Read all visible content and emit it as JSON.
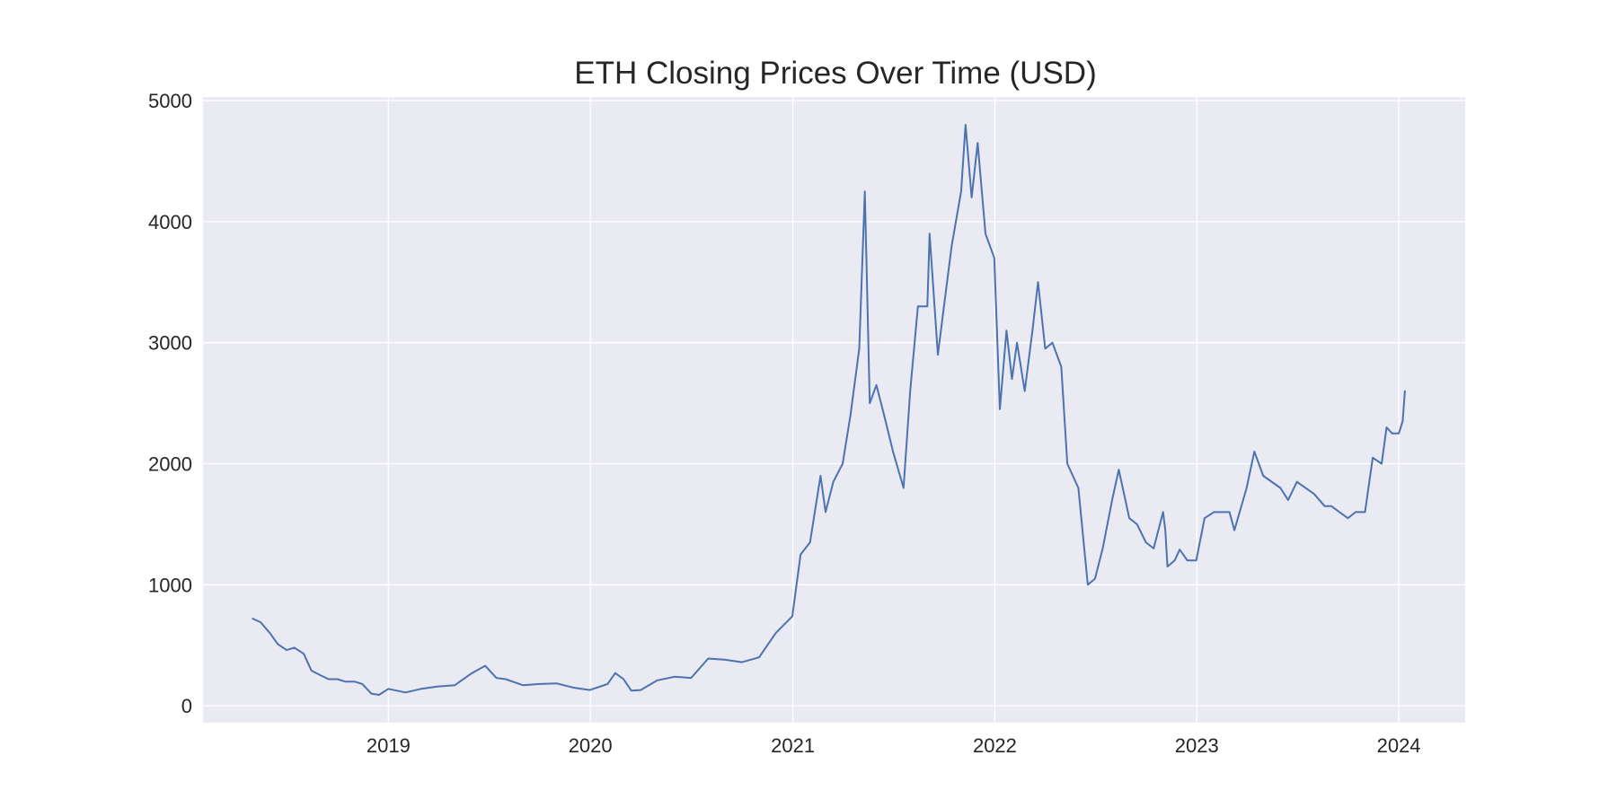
{
  "chart_data": {
    "type": "line",
    "title": "ETH Closing Prices Over Time (USD)",
    "xlabel": "",
    "ylabel": "",
    "x_ticks": [
      "2019",
      "2020",
      "2021",
      "2022",
      "2023",
      "2024"
    ],
    "y_ticks": [
      "0",
      "1000",
      "2000",
      "3000",
      "4000",
      "5000"
    ],
    "xlim": [
      "2018-01-31",
      "2024-04-30"
    ],
    "ylim": [
      -140,
      5030
    ],
    "grid": true,
    "legend": "none",
    "colors": {
      "line": "#4c72b0",
      "plot_bg": "#eaeaf2",
      "grid": "#ffffff",
      "text": "#262626"
    },
    "series": [
      {
        "x": [
          "2018-05-01",
          "2018-05-15",
          "2018-06-01",
          "2018-06-15",
          "2018-07-01",
          "2018-07-15",
          "2018-08-01",
          "2018-08-15",
          "2018-09-01",
          "2018-09-15",
          "2018-10-01",
          "2018-10-15",
          "2018-11-01",
          "2018-11-15",
          "2018-12-01",
          "2018-12-15",
          "2019-01-01",
          "2019-02-01",
          "2019-03-01",
          "2019-04-01",
          "2019-05-01",
          "2019-06-01",
          "2019-06-25",
          "2019-07-15",
          "2019-08-01",
          "2019-09-01",
          "2019-10-01",
          "2019-11-01",
          "2019-12-01",
          "2019-12-31",
          "2020-02-01",
          "2020-02-15",
          "2020-03-01",
          "2020-03-15",
          "2020-04-01",
          "2020-05-01",
          "2020-06-01",
          "2020-07-01",
          "2020-08-01",
          "2020-09-01",
          "2020-10-01",
          "2020-11-01",
          "2020-12-01",
          "2020-12-31",
          "2021-01-15",
          "2021-02-01",
          "2021-02-20",
          "2021-03-01",
          "2021-03-15",
          "2021-04-01",
          "2021-04-15",
          "2021-05-01",
          "2021-05-11",
          "2021-05-20",
          "2021-06-01",
          "2021-06-15",
          "2021-07-01",
          "2021-07-20",
          "2021-08-01",
          "2021-08-15",
          "2021-09-01",
          "2021-09-05",
          "2021-09-20",
          "2021-10-01",
          "2021-10-15",
          "2021-11-01",
          "2021-11-09",
          "2021-11-20",
          "2021-12-01",
          "2021-12-15",
          "2021-12-31",
          "2022-01-10",
          "2022-01-22",
          "2022-02-01",
          "2022-02-10",
          "2022-02-24",
          "2022-03-10",
          "2022-03-20",
          "2022-04-02",
          "2022-04-15",
          "2022-05-01",
          "2022-05-12",
          "2022-06-01",
          "2022-06-18",
          "2022-07-01",
          "2022-07-15",
          "2022-08-01",
          "2022-08-13",
          "2022-09-01",
          "2022-09-15",
          "2022-10-01",
          "2022-10-15",
          "2022-11-01",
          "2022-11-05",
          "2022-11-09",
          "2022-11-22",
          "2022-12-01",
          "2022-12-15",
          "2022-12-31",
          "2023-01-15",
          "2023-02-01",
          "2023-03-01",
          "2023-03-10",
          "2023-04-01",
          "2023-04-15",
          "2023-05-01",
          "2023-06-01",
          "2023-06-15",
          "2023-07-01",
          "2023-08-01",
          "2023-08-20",
          "2023-09-01",
          "2023-10-01",
          "2023-10-15",
          "2023-11-01",
          "2023-11-15",
          "2023-12-01",
          "2023-12-10",
          "2023-12-20",
          "2024-01-01",
          "2024-01-08",
          "2024-01-12"
        ],
        "y": [
          720,
          690,
          600,
          510,
          460,
          480,
          430,
          290,
          250,
          220,
          220,
          200,
          200,
          180,
          100,
          90,
          140,
          110,
          140,
          160,
          170,
          270,
          330,
          230,
          220,
          170,
          180,
          185,
          150,
          130,
          180,
          270,
          220,
          125,
          130,
          210,
          240,
          230,
          390,
          380,
          360,
          400,
          600,
          740,
          1250,
          1350,
          1900,
          1600,
          1850,
          2000,
          2400,
          2950,
          4250,
          2500,
          2650,
          2400,
          2100,
          1800,
          2600,
          3300,
          3300,
          3900,
          2900,
          3300,
          3800,
          4250,
          4800,
          4200,
          4650,
          3900,
          3700,
          2450,
          3100,
          2700,
          3000,
          2600,
          3100,
          3500,
          2950,
          3000,
          2800,
          2000,
          1800,
          1000,
          1050,
          1300,
          1700,
          1950,
          1550,
          1500,
          1350,
          1300,
          1600,
          1450,
          1150,
          1200,
          1290,
          1200,
          1200,
          1550,
          1600,
          1600,
          1450,
          1800,
          2100,
          1900,
          1800,
          1700,
          1850,
          1750,
          1650,
          1650,
          1550,
          1600,
          1600,
          2050,
          2000,
          2300,
          2250,
          2250,
          2350,
          2600
        ]
      }
    ]
  }
}
